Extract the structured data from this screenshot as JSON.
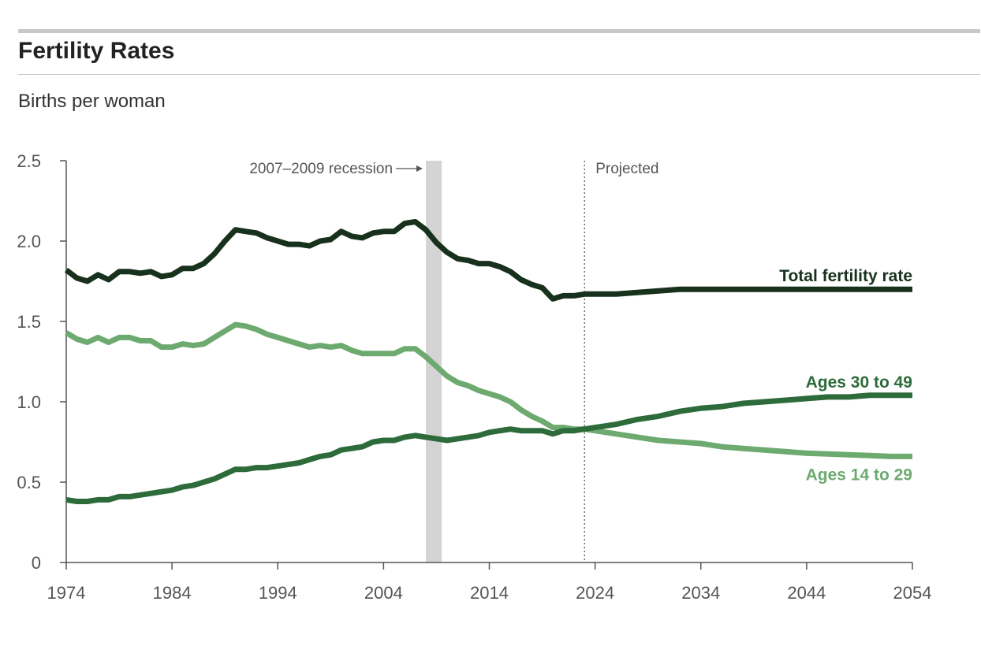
{
  "header": {
    "title": "Fertility Rates",
    "subtitle": "Births per woman"
  },
  "chart_data": {
    "type": "line",
    "title": "Fertility Rates",
    "ylabel": "Births per woman",
    "xlabel": "",
    "xlim": [
      1974,
      2054
    ],
    "ylim": [
      0,
      2.5
    ],
    "x_ticks": [
      "1974",
      "1984",
      "1994",
      "2004",
      "2014",
      "2024",
      "2034",
      "2044",
      "2054"
    ],
    "y_ticks": [
      "0",
      "0.5",
      "1.0",
      "1.5",
      "2.0",
      "2.5"
    ],
    "grid": false,
    "annotations": {
      "recession_label": "2007–2009 recession",
      "recession_start": 2008,
      "recession_end": 2009.5,
      "projected_label": "Projected",
      "projected_year": 2023
    },
    "series": [
      {
        "name": "Total fertility rate",
        "color": "#17311c",
        "x": [
          1974,
          1975,
          1976,
          1977,
          1978,
          1979,
          1980,
          1981,
          1982,
          1983,
          1984,
          1985,
          1986,
          1987,
          1988,
          1989,
          1990,
          1991,
          1992,
          1993,
          1994,
          1995,
          1996,
          1997,
          1998,
          1999,
          2000,
          2001,
          2002,
          2003,
          2004,
          2005,
          2006,
          2007,
          2008,
          2009,
          2010,
          2011,
          2012,
          2013,
          2014,
          2015,
          2016,
          2017,
          2018,
          2019,
          2020,
          2021,
          2022,
          2023,
          2024,
          2025,
          2026,
          2028,
          2030,
          2032,
          2034,
          2036,
          2038,
          2040,
          2044,
          2048,
          2052,
          2054
        ],
        "values": [
          1.82,
          1.77,
          1.75,
          1.79,
          1.76,
          1.81,
          1.81,
          1.8,
          1.81,
          1.78,
          1.79,
          1.83,
          1.83,
          1.86,
          1.92,
          2.0,
          2.07,
          2.06,
          2.05,
          2.02,
          2.0,
          1.98,
          1.98,
          1.97,
          2.0,
          2.01,
          2.06,
          2.03,
          2.02,
          2.05,
          2.06,
          2.06,
          2.11,
          2.12,
          2.07,
          1.99,
          1.93,
          1.89,
          1.88,
          1.86,
          1.86,
          1.84,
          1.81,
          1.76,
          1.73,
          1.71,
          1.64,
          1.66,
          1.66,
          1.67,
          1.67,
          1.67,
          1.67,
          1.68,
          1.69,
          1.7,
          1.7,
          1.7,
          1.7,
          1.7,
          1.7,
          1.7,
          1.7,
          1.7
        ]
      },
      {
        "name": "Ages 30 to 49",
        "color": "#2d6b3a",
        "x": [
          1974,
          1975,
          1976,
          1977,
          1978,
          1979,
          1980,
          1981,
          1982,
          1983,
          1984,
          1985,
          1986,
          1987,
          1988,
          1989,
          1990,
          1991,
          1992,
          1993,
          1994,
          1995,
          1996,
          1997,
          1998,
          1999,
          2000,
          2001,
          2002,
          2003,
          2004,
          2005,
          2006,
          2007,
          2008,
          2009,
          2010,
          2011,
          2012,
          2013,
          2014,
          2015,
          2016,
          2017,
          2018,
          2019,
          2020,
          2021,
          2022,
          2023,
          2024,
          2026,
          2028,
          2030,
          2032,
          2034,
          2036,
          2038,
          2040,
          2042,
          2044,
          2046,
          2048,
          2050,
          2052,
          2054
        ],
        "values": [
          0.39,
          0.38,
          0.38,
          0.39,
          0.39,
          0.41,
          0.41,
          0.42,
          0.43,
          0.44,
          0.45,
          0.47,
          0.48,
          0.5,
          0.52,
          0.55,
          0.58,
          0.58,
          0.59,
          0.59,
          0.6,
          0.61,
          0.62,
          0.64,
          0.66,
          0.67,
          0.7,
          0.71,
          0.72,
          0.75,
          0.76,
          0.76,
          0.78,
          0.79,
          0.78,
          0.77,
          0.76,
          0.77,
          0.78,
          0.79,
          0.81,
          0.82,
          0.83,
          0.82,
          0.82,
          0.82,
          0.8,
          0.82,
          0.82,
          0.83,
          0.84,
          0.86,
          0.89,
          0.91,
          0.94,
          0.96,
          0.97,
          0.99,
          1.0,
          1.01,
          1.02,
          1.03,
          1.03,
          1.04,
          1.04,
          1.04
        ]
      },
      {
        "name": "Ages 14 to 29",
        "color": "#6daa6f",
        "x": [
          1974,
          1975,
          1976,
          1977,
          1978,
          1979,
          1980,
          1981,
          1982,
          1983,
          1984,
          1985,
          1986,
          1987,
          1988,
          1989,
          1990,
          1991,
          1992,
          1993,
          1994,
          1995,
          1996,
          1997,
          1998,
          1999,
          2000,
          2001,
          2002,
          2003,
          2004,
          2005,
          2006,
          2007,
          2008,
          2009,
          2010,
          2011,
          2012,
          2013,
          2014,
          2015,
          2016,
          2017,
          2018,
          2019,
          2020,
          2021,
          2022,
          2023,
          2024,
          2026,
          2028,
          2030,
          2032,
          2034,
          2036,
          2038,
          2040,
          2042,
          2044,
          2046,
          2048,
          2050,
          2052,
          2054
        ],
        "values": [
          1.43,
          1.39,
          1.37,
          1.4,
          1.37,
          1.4,
          1.4,
          1.38,
          1.38,
          1.34,
          1.34,
          1.36,
          1.35,
          1.36,
          1.4,
          1.44,
          1.48,
          1.47,
          1.45,
          1.42,
          1.4,
          1.38,
          1.36,
          1.34,
          1.35,
          1.34,
          1.35,
          1.32,
          1.3,
          1.3,
          1.3,
          1.3,
          1.33,
          1.33,
          1.28,
          1.22,
          1.16,
          1.12,
          1.1,
          1.07,
          1.05,
          1.03,
          1.0,
          0.95,
          0.91,
          0.88,
          0.84,
          0.84,
          0.83,
          0.83,
          0.82,
          0.8,
          0.78,
          0.76,
          0.75,
          0.74,
          0.72,
          0.71,
          0.7,
          0.69,
          0.68,
          0.675,
          0.67,
          0.665,
          0.66,
          0.66
        ]
      }
    ]
  }
}
